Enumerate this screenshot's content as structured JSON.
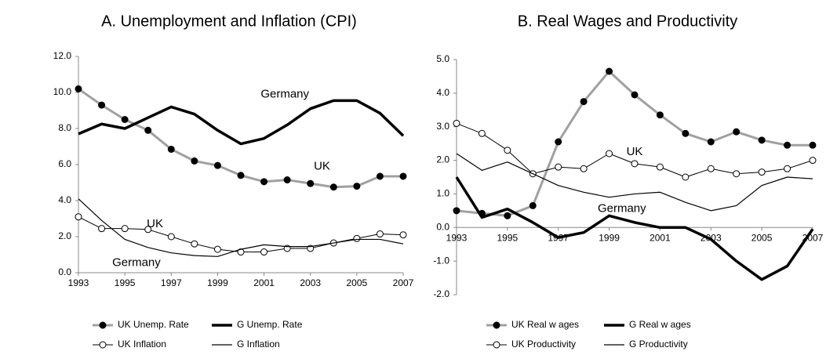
{
  "chart_data": [
    {
      "type": "line",
      "title": "A. Unemployment and Inflation (CPI)",
      "x": [
        1993,
        1994,
        1995,
        1996,
        1997,
        1998,
        1999,
        2000,
        2001,
        2002,
        2003,
        2004,
        2005,
        2006,
        2007
      ],
      "xlim": [
        1993,
        2007
      ],
      "xticks": [
        1993,
        1995,
        1997,
        1999,
        2001,
        2003,
        2005,
        2007
      ],
      "ylim": [
        0,
        12
      ],
      "yticks": [
        {
          "value": 0,
          "label": "0.0"
        },
        {
          "value": 2,
          "label": "2.0"
        },
        {
          "value": 4,
          "label": "4.0"
        },
        {
          "value": 6,
          "label": "6.0"
        },
        {
          "value": 8,
          "label": "8.0"
        },
        {
          "value": 10,
          "label": "10.0"
        },
        {
          "value": 12,
          "label": "12.0"
        }
      ],
      "series": [
        {
          "name": "UK Unemp. Rate",
          "color": "#a0a0a0",
          "width": 3,
          "marker": "filled",
          "values": [
            10.2,
            9.3,
            8.5,
            7.9,
            6.85,
            6.2,
            5.95,
            5.4,
            5.05,
            5.15,
            4.95,
            4.75,
            4.8,
            5.35,
            5.35
          ]
        },
        {
          "name": "G Unemp. Rate",
          "color": "#000000",
          "width": 3.5,
          "marker": "none",
          "values": [
            7.7,
            8.25,
            8.0,
            8.6,
            9.2,
            8.8,
            7.9,
            7.15,
            7.45,
            8.2,
            9.1,
            9.55,
            9.55,
            8.85,
            7.6
          ]
        },
        {
          "name": "UK Inflation",
          "color": "#000000",
          "width": 1,
          "marker": "open",
          "values": [
            3.1,
            2.45,
            2.45,
            2.4,
            2.0,
            1.6,
            1.3,
            1.15,
            1.15,
            1.35,
            1.35,
            1.65,
            1.9,
            2.15,
            2.1
          ]
        },
        {
          "name": "G Inflation",
          "color": "#000000",
          "width": 1.2,
          "marker": "none",
          "values": [
            4.1,
            2.9,
            1.85,
            1.4,
            1.1,
            0.95,
            0.9,
            1.3,
            1.55,
            1.45,
            1.45,
            1.65,
            1.85,
            1.85,
            1.6
          ]
        }
      ],
      "annotations": [
        "Germany",
        "UK",
        "UK",
        "Germany"
      ]
    },
    {
      "type": "line",
      "title": "B. Real Wages and Productivity",
      "x": [
        1993,
        1994,
        1995,
        1996,
        1997,
        1998,
        1999,
        2000,
        2001,
        2002,
        2003,
        2004,
        2005,
        2006,
        2007
      ],
      "xlim": [
        1993,
        2007
      ],
      "xticks": [
        1993,
        1995,
        1997,
        1999,
        2001,
        2003,
        2005,
        2007
      ],
      "ylim": [
        -2,
        5
      ],
      "yticks": [
        {
          "value": -2,
          "label": "-2.0"
        },
        {
          "value": -1,
          "label": "-1.0"
        },
        {
          "value": 0,
          "label": "0.0"
        },
        {
          "value": 1,
          "label": "1.0"
        },
        {
          "value": 2,
          "label": "2.0"
        },
        {
          "value": 3,
          "label": "3.0"
        },
        {
          "value": 4,
          "label": "4.0"
        },
        {
          "value": 5,
          "label": "5.0"
        }
      ],
      "series": [
        {
          "name": "UK Real w ages",
          "color": "#a0a0a0",
          "width": 3,
          "marker": "filled",
          "values": [
            0.5,
            0.42,
            0.35,
            0.65,
            2.55,
            3.75,
            4.65,
            3.95,
            3.35,
            2.8,
            2.55,
            2.85,
            2.6,
            2.45,
            2.45
          ]
        },
        {
          "name": "G Real w ages",
          "color": "#000000",
          "width": 3.5,
          "marker": "none",
          "values": [
            1.5,
            0.3,
            0.55,
            0.15,
            -0.3,
            -0.15,
            0.35,
            0.15,
            0.0,
            0.0,
            -0.35,
            -1.0,
            -1.55,
            -1.15,
            -0.05
          ]
        },
        {
          "name": "UK Productivity",
          "color": "#000000",
          "width": 1,
          "marker": "open",
          "values": [
            3.1,
            2.8,
            2.3,
            1.6,
            1.8,
            1.75,
            2.2,
            1.9,
            1.8,
            1.5,
            1.75,
            1.6,
            1.65,
            1.75,
            2.0
          ]
        },
        {
          "name": "G Productivity",
          "color": "#000000",
          "width": 1.2,
          "marker": "none",
          "values": [
            2.2,
            1.7,
            1.95,
            1.6,
            1.25,
            1.05,
            0.9,
            1.0,
            1.05,
            0.75,
            0.5,
            0.65,
            1.25,
            1.5,
            1.45
          ]
        }
      ],
      "annotations": [
        "UK",
        "Germany"
      ]
    }
  ]
}
